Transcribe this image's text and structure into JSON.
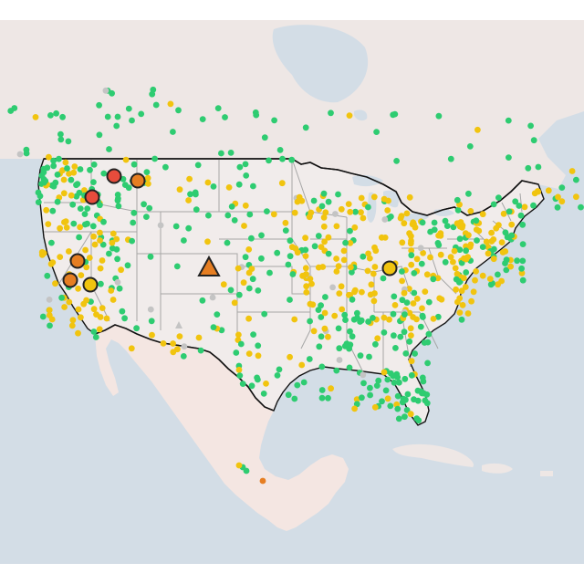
{
  "map": {
    "colors": {
      "water": "#d3dde6",
      "land": "#f1eceb",
      "land_foreign": "#eee7e5",
      "mexico": "#f4e6e2",
      "state_border": "#a6a6a6",
      "country_border": "#111111",
      "good": "#2ecc71",
      "moderate": "#f1c40f",
      "sensitive": "#e67e22",
      "unhealthy": "#e74c3c",
      "no_data": "#c4c4c4"
    },
    "icons": {
      "monitor": "circle-marker",
      "fire": "triangle-marker"
    }
  }
}
